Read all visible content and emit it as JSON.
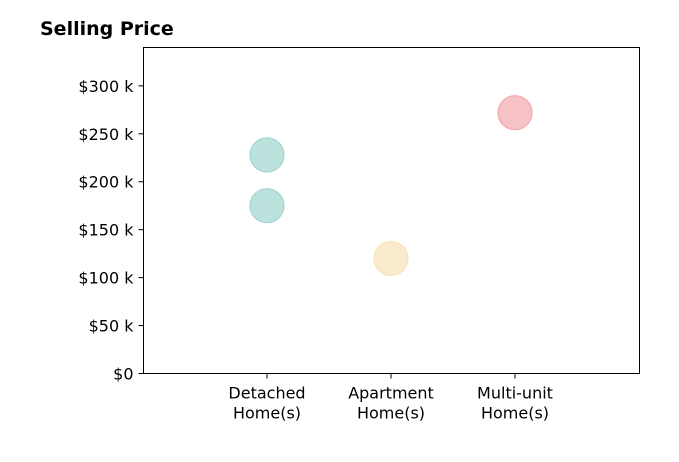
{
  "chart_data": {
    "type": "scatter",
    "title": "Selling Price",
    "xlabel": "",
    "ylabel": "",
    "categories": [
      "Detached\nHome(s)",
      "Apartment\nHome(s)",
      "Multi-unit\nHome(s)"
    ],
    "ylim": [
      0,
      340000
    ],
    "yticks": [
      {
        "value": 0,
        "label": "$0"
      },
      {
        "value": 50000,
        "label": "$50 k"
      },
      {
        "value": 100000,
        "label": "$100 k"
      },
      {
        "value": 150000,
        "label": "$150 k"
      },
      {
        "value": 200000,
        "label": "$200 k"
      },
      {
        "value": 250000,
        "label": "$250 k"
      },
      {
        "value": 300000,
        "label": "$300 k"
      }
    ],
    "grid": false,
    "points": [
      {
        "category": "Detached\nHome(s)",
        "value": 228000,
        "color": "#9fd6cf"
      },
      {
        "category": "Detached\nHome(s)",
        "value": 175000,
        "color": "#9fd6cf"
      },
      {
        "category": "Apartment\nHome(s)",
        "value": 120000,
        "color": "#f7e3b8"
      },
      {
        "category": "Multi-unit\nHome(s)",
        "value": 272000,
        "color": "#f3a8ae"
      }
    ]
  }
}
